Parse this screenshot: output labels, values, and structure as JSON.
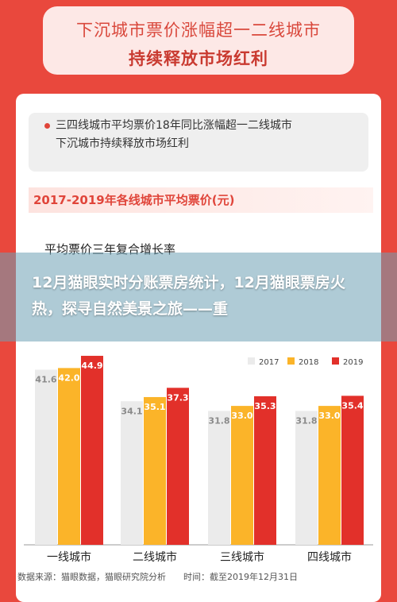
{
  "banner": {
    "line1": "下沉城市票价涨幅超一二线城市",
    "line2": "持续释放市场红利"
  },
  "note": {
    "line1": "三四线城市平均票价18年同比涨幅超一二线城市",
    "line2": "下沉城市持续释放市场红利"
  },
  "section_title": "2017-2019年各线城市平均票价(元)",
  "subtitle": "平均票价三年复合增长率",
  "overlay_title": "12月猫眼实时分账票房统计，12月猫眼票房火热，探寻自然美景之旅——重",
  "source": "数据来源：猫眼数据，猫眼研究院分析",
  "date": "时间：截至2019年12月31日",
  "colors": {
    "2017": "#ebebeb",
    "2018": "#fbb429",
    "2019": "#e2302a"
  },
  "chart_data": {
    "type": "bar",
    "categories": [
      "一线城市",
      "二线城市",
      "三线城市",
      "四线城市"
    ],
    "series": [
      {
        "name": "2017",
        "values": [
          41.6,
          34.1,
          31.8,
          31.8
        ]
      },
      {
        "name": "2018",
        "values": [
          42.0,
          35.1,
          33.0,
          33.0
        ]
      },
      {
        "name": "2019",
        "values": [
          44.9,
          37.3,
          35.3,
          35.4
        ]
      }
    ],
    "title": "2017-2019年各线城市平均票价(元)",
    "legend": "top-right",
    "grid": false
  }
}
